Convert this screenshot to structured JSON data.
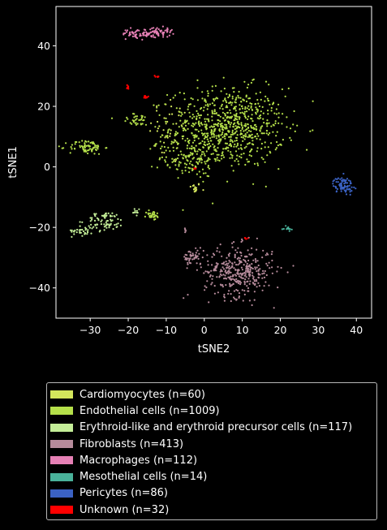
{
  "chart_data": {
    "type": "scatter",
    "xlabel": "tSNE2",
    "ylabel": "tSNE1",
    "xlim": [
      -39,
      44
    ],
    "ylim": [
      -50,
      53
    ],
    "xticks": [
      -30,
      -20,
      -10,
      0,
      10,
      20,
      30,
      40
    ],
    "yticks": [
      -40,
      -20,
      0,
      20,
      40
    ],
    "xtick_labels": [
      "−30",
      "−20",
      "−10",
      "0",
      "10",
      "20",
      "30",
      "40"
    ],
    "ytick_labels": [
      "−40",
      "−20",
      "0",
      "20",
      "40"
    ],
    "grid": false,
    "legend_position": "below",
    "series": [
      {
        "name": "Cardiomyocytes (n=60)",
        "color": "#d4e65c",
        "clusters": [
          {
            "cx": -2.5,
            "cy": -7,
            "sx": 0.8,
            "sy": 0.9,
            "n": 15
          },
          {
            "cx": -8.5,
            "cy": 12,
            "sx": 3,
            "sy": 6,
            "n": 45
          }
        ]
      },
      {
        "name": "Endothelial cells (n=1009)",
        "color": "#b5e04a",
        "clusters": [
          {
            "cx": 6,
            "cy": 13,
            "sx": 7.5,
            "sy": 6.5,
            "n": 760
          },
          {
            "cx": -4,
            "cy": 3,
            "sx": 4,
            "sy": 3,
            "n": 110
          },
          {
            "cx": -31,
            "cy": 6.5,
            "sx": 2.3,
            "sy": 1.2,
            "n": 75
          },
          {
            "cx": -13.5,
            "cy": -16,
            "sx": 0.9,
            "sy": 0.8,
            "n": 30
          },
          {
            "cx": -17.5,
            "cy": 15.5,
            "sx": 2,
            "sy": 1,
            "n": 34
          }
        ]
      },
      {
        "name": "Erythroid-like and erythroid precursor cells (n=117)",
        "color": "#c4ee98",
        "clusters": [
          {
            "cx": -26,
            "cy": -18,
            "sx": 2.5,
            "sy": 1.6,
            "n": 75
          },
          {
            "cx": -32,
            "cy": -21,
            "sx": 1.4,
            "sy": 0.9,
            "n": 32
          },
          {
            "cx": -18,
            "cy": -15,
            "sx": 0.6,
            "sy": 0.5,
            "n": 10
          }
        ]
      },
      {
        "name": "Fibroblasts (n=413)",
        "color": "#b68b9b",
        "clusters": [
          {
            "cx": 9,
            "cy": -34.5,
            "sx": 4.5,
            "sy": 4.2,
            "n": 360
          },
          {
            "cx": -3,
            "cy": -30,
            "sx": 1.3,
            "sy": 1.3,
            "n": 48
          },
          {
            "cx": -5,
            "cy": -21,
            "sx": 0.3,
            "sy": 0.5,
            "n": 5
          }
        ]
      },
      {
        "name": "Macrophages (n=112)",
        "color": "#e680b5",
        "clusters": [
          {
            "cx": -17.5,
            "cy": 44,
            "sx": 2,
            "sy": 0.8,
            "n": 56
          },
          {
            "cx": -12,
            "cy": 44.5,
            "sx": 1.8,
            "sy": 0.8,
            "n": 56
          }
        ]
      },
      {
        "name": "Mesothelial cells (n=14)",
        "color": "#49b29a",
        "clusters": [
          {
            "cx": 22,
            "cy": -20.5,
            "sx": 0.5,
            "sy": 0.4,
            "n": 14
          }
        ]
      },
      {
        "name": "Pericytes (n=86)",
        "color": "#3b62c4",
        "clusters": [
          {
            "cx": 36.5,
            "cy": -6,
            "sx": 1.3,
            "sy": 1.3,
            "n": 86
          }
        ]
      },
      {
        "name": "Unknown (n=32)",
        "color": "#ff0000",
        "clusters": [
          {
            "cx": -20,
            "cy": 26.5,
            "sx": 0.3,
            "sy": 0.3,
            "n": 6
          },
          {
            "cx": -12.5,
            "cy": 30,
            "sx": 0.3,
            "sy": 0.4,
            "n": 6
          },
          {
            "cx": -15.5,
            "cy": 23,
            "sx": 0.5,
            "sy": 0.3,
            "n": 12
          },
          {
            "cx": -2.5,
            "cy": -0.5,
            "sx": 0.2,
            "sy": 0.2,
            "n": 3
          },
          {
            "cx": 11,
            "cy": -23.5,
            "sx": 0.3,
            "sy": 0.3,
            "n": 5
          }
        ]
      }
    ]
  }
}
